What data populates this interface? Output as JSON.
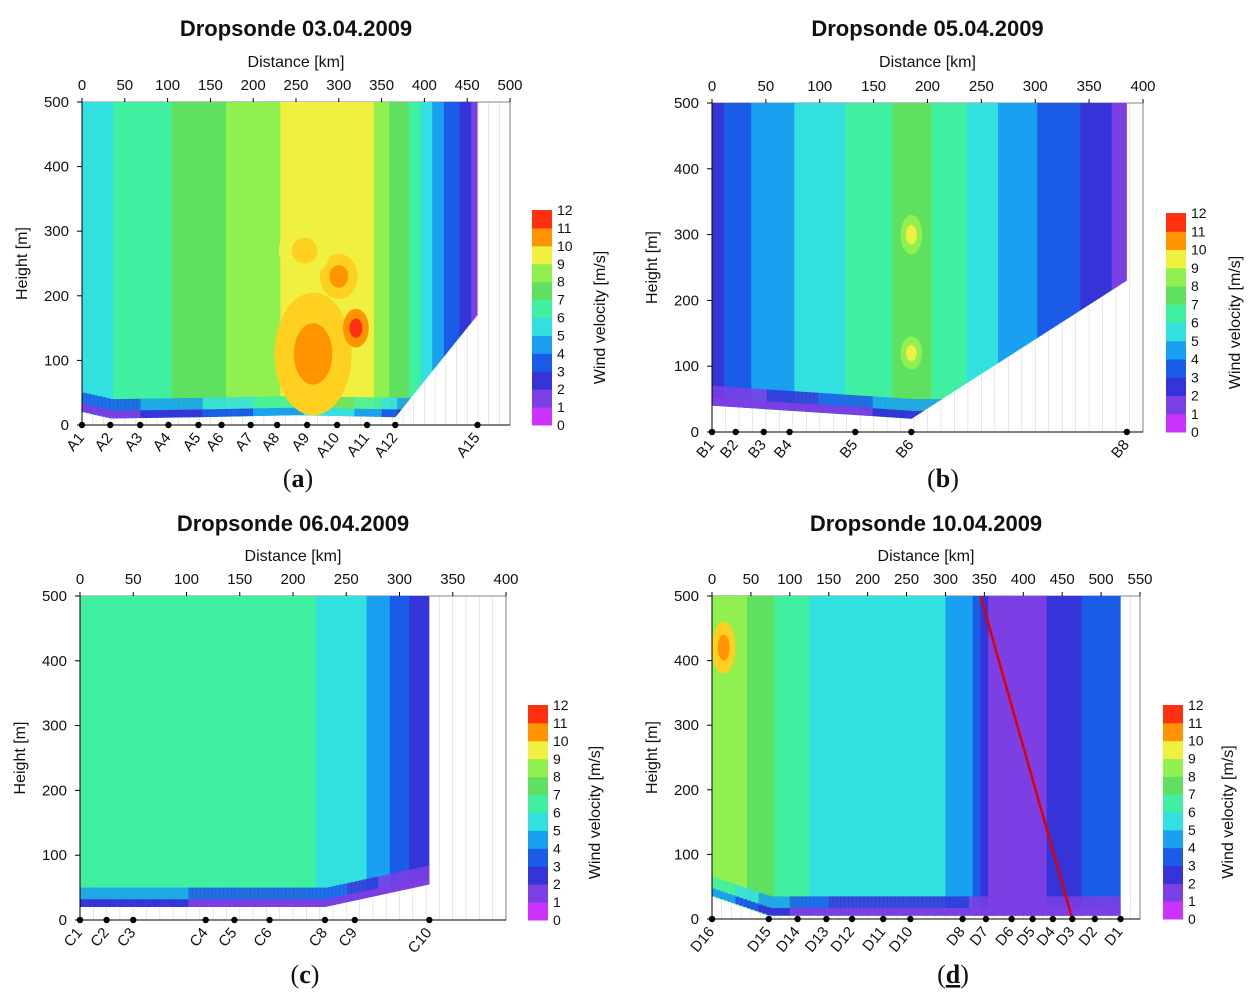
{
  "colorbar": {
    "label": "Wind velocity [m/s]",
    "ticks": [
      "0",
      "1",
      "2",
      "3",
      "4",
      "5",
      "6",
      "7",
      "8",
      "9",
      "10",
      "11",
      "12"
    ],
    "colors": [
      "#cc33ff",
      "#7b3fe4",
      "#3434d8",
      "#1a5ce8",
      "#1aa0f0",
      "#33e0e0",
      "#40f0a0",
      "#60e060",
      "#90f050",
      "#f0f040",
      "#ffd020",
      "#ff9400",
      "#ff3010"
    ]
  },
  "chart_data": [
    {
      "type": "heatmap",
      "panel": "a",
      "sublabel": "a",
      "title": "Dropsonde 03.04.2009",
      "xlabel": "Distance [km]",
      "ylabel": "Height [m]",
      "xlim": [
        0,
        500
      ],
      "ylim": [
        0,
        500
      ],
      "xticks": [
        0,
        50,
        100,
        150,
        200,
        250,
        300,
        350,
        400,
        450,
        500
      ],
      "yticks": [
        0,
        100,
        200,
        300,
        400,
        500
      ],
      "sondes": [
        {
          "name": "A1",
          "km": 0
        },
        {
          "name": "A2",
          "km": 33
        },
        {
          "name": "A3",
          "km": 68
        },
        {
          "name": "A4",
          "km": 101
        },
        {
          "name": "A5",
          "km": 136
        },
        {
          "name": "A6",
          "km": 163
        },
        {
          "name": "A7",
          "km": 197
        },
        {
          "name": "A8",
          "km": 228
        },
        {
          "name": "A9",
          "km": 263
        },
        {
          "name": "A10",
          "km": 298
        },
        {
          "name": "A11",
          "km": 333
        },
        {
          "name": "A12",
          "km": 366
        },
        {
          "name": "A15",
          "km": 462
        }
      ],
      "bottom": [
        [
          0,
          20
        ],
        [
          33,
          10
        ],
        [
          136,
          12
        ],
        [
          250,
          15
        ],
        [
          366,
          12
        ]
      ],
      "top": [
        [
          0,
          500
        ],
        [
          462,
          500
        ],
        [
          462,
          170
        ],
        [
          366,
          12
        ]
      ],
      "profile": {
        "x": [
          0,
          70,
          140,
          200,
          260,
          300,
          340,
          380,
          410,
          440,
          462
        ],
        "v": [
          5.5,
          6.5,
          7.5,
          8.5,
          9.5,
          10,
          9,
          7,
          5,
          3,
          1.5
        ]
      },
      "hotspots": [
        [
          270,
          110,
          45,
          95,
          11
        ],
        [
          300,
          230,
          22,
          35,
          11
        ],
        [
          320,
          150,
          15,
          30,
          12
        ],
        [
          260,
          270,
          30,
          40,
          10
        ]
      ]
    },
    {
      "type": "heatmap",
      "panel": "b",
      "sublabel": "b",
      "title": "Dropsonde 05.04.2009",
      "xlabel": "Distance [km]",
      "ylabel": "Height [m]",
      "xlim": [
        0,
        400
      ],
      "ylim": [
        0,
        500
      ],
      "xticks": [
        0,
        50,
        100,
        150,
        200,
        250,
        300,
        350,
        400
      ],
      "yticks": [
        0,
        100,
        200,
        300,
        400,
        500
      ],
      "sondes": [
        {
          "name": "B1",
          "km": 0
        },
        {
          "name": "B2",
          "km": 22
        },
        {
          "name": "B3",
          "km": 48
        },
        {
          "name": "B4",
          "km": 72
        },
        {
          "name": "B5",
          "km": 133
        },
        {
          "name": "B6",
          "km": 185
        },
        {
          "name": "B8",
          "km": 385
        }
      ],
      "bottom": [
        [
          0,
          40
        ],
        [
          185,
          20
        ]
      ],
      "top": [
        [
          0,
          500
        ],
        [
          385,
          500
        ],
        [
          385,
          230
        ],
        [
          185,
          20
        ]
      ],
      "profile": {
        "x": [
          0,
          20,
          50,
          100,
          150,
          185,
          220,
          260,
          300,
          340,
          370,
          385
        ],
        "v": [
          2.5,
          3.5,
          4.5,
          5.5,
          6.5,
          7.5,
          6.5,
          5.2,
          4,
          3,
          2,
          1
        ]
      },
      "hotspots": [
        [
          185,
          300,
          10,
          30,
          9
        ],
        [
          185,
          120,
          10,
          25,
          9
        ]
      ]
    },
    {
      "type": "heatmap",
      "panel": "c",
      "sublabel": "c",
      "title": "Dropsonde 06.04.2009",
      "xlabel": "Distance [km]",
      "ylabel": "Height [m]",
      "xlim": [
        0,
        400
      ],
      "ylim": [
        0,
        500
      ],
      "xticks": [
        0,
        50,
        100,
        150,
        200,
        250,
        300,
        350,
        400
      ],
      "yticks": [
        0,
        100,
        200,
        300,
        400,
        500
      ],
      "sondes": [
        {
          "name": "C1",
          "km": 0
        },
        {
          "name": "C2",
          "km": 25
        },
        {
          "name": "C3",
          "km": 50
        },
        {
          "name": "C4",
          "km": 118
        },
        {
          "name": "C5",
          "km": 145
        },
        {
          "name": "C6",
          "km": 178
        },
        {
          "name": "C8",
          "km": 230
        },
        {
          "name": "C9",
          "km": 258
        },
        {
          "name": "C10",
          "km": 328
        }
      ],
      "bottom": [
        [
          0,
          20
        ],
        [
          230,
          20
        ],
        [
          328,
          55
        ]
      ],
      "top": [
        [
          0,
          500
        ],
        [
          328,
          500
        ],
        [
          328,
          55
        ]
      ],
      "profile": {
        "x": [
          0,
          100,
          200,
          240,
          270,
          290,
          310,
          328
        ],
        "v": [
          6.5,
          6.5,
          6.2,
          5.8,
          5,
          4,
          3,
          2
        ]
      },
      "hotspots": []
    },
    {
      "type": "heatmap",
      "panel": "d",
      "sublabel": "d",
      "title": "Dropsonde 10.04.2009",
      "xlabel": "Distance [km]",
      "ylabel": "Height [m]",
      "xlim": [
        0,
        550
      ],
      "ylim": [
        0,
        500
      ],
      "xticks": [
        0,
        50,
        100,
        150,
        200,
        250,
        300,
        350,
        400,
        450,
        500,
        550
      ],
      "yticks": [
        0,
        100,
        200,
        300,
        400,
        500
      ],
      "sondes": [
        {
          "name": "D16",
          "km": 0
        },
        {
          "name": "D15",
          "km": 73
        },
        {
          "name": "D14",
          "km": 110
        },
        {
          "name": "D13",
          "km": 147
        },
        {
          "name": "D12",
          "km": 180
        },
        {
          "name": "D11",
          "km": 220
        },
        {
          "name": "D10",
          "km": 255
        },
        {
          "name": "D8",
          "km": 322
        },
        {
          "name": "D7",
          "km": 352
        },
        {
          "name": "D6",
          "km": 385
        },
        {
          "name": "D5",
          "km": 412
        },
        {
          "name": "D4",
          "km": 438
        },
        {
          "name": "D3",
          "km": 463
        },
        {
          "name": "D2",
          "km": 492
        },
        {
          "name": "D1",
          "km": 525
        }
      ],
      "bottom": [
        [
          0,
          35
        ],
        [
          73,
          5
        ],
        [
          525,
          5
        ]
      ],
      "top": [
        [
          0,
          500
        ],
        [
          525,
          500
        ],
        [
          525,
          5
        ]
      ],
      "profile": {
        "x": [
          0,
          30,
          60,
          100,
          150,
          200,
          250,
          300,
          330,
          345,
          360,
          400,
          450,
          500,
          525
        ],
        "v": [
          9,
          8.5,
          7.5,
          6.5,
          5.5,
          5,
          5.5,
          5,
          4.5,
          3,
          1.5,
          1.2,
          2.5,
          3.5,
          3
        ]
      },
      "hotspots": [
        [
          15,
          420,
          15,
          40,
          11
        ]
      ],
      "line": [
        [
          345,
          500
        ],
        [
          463,
          0
        ]
      ]
    }
  ]
}
